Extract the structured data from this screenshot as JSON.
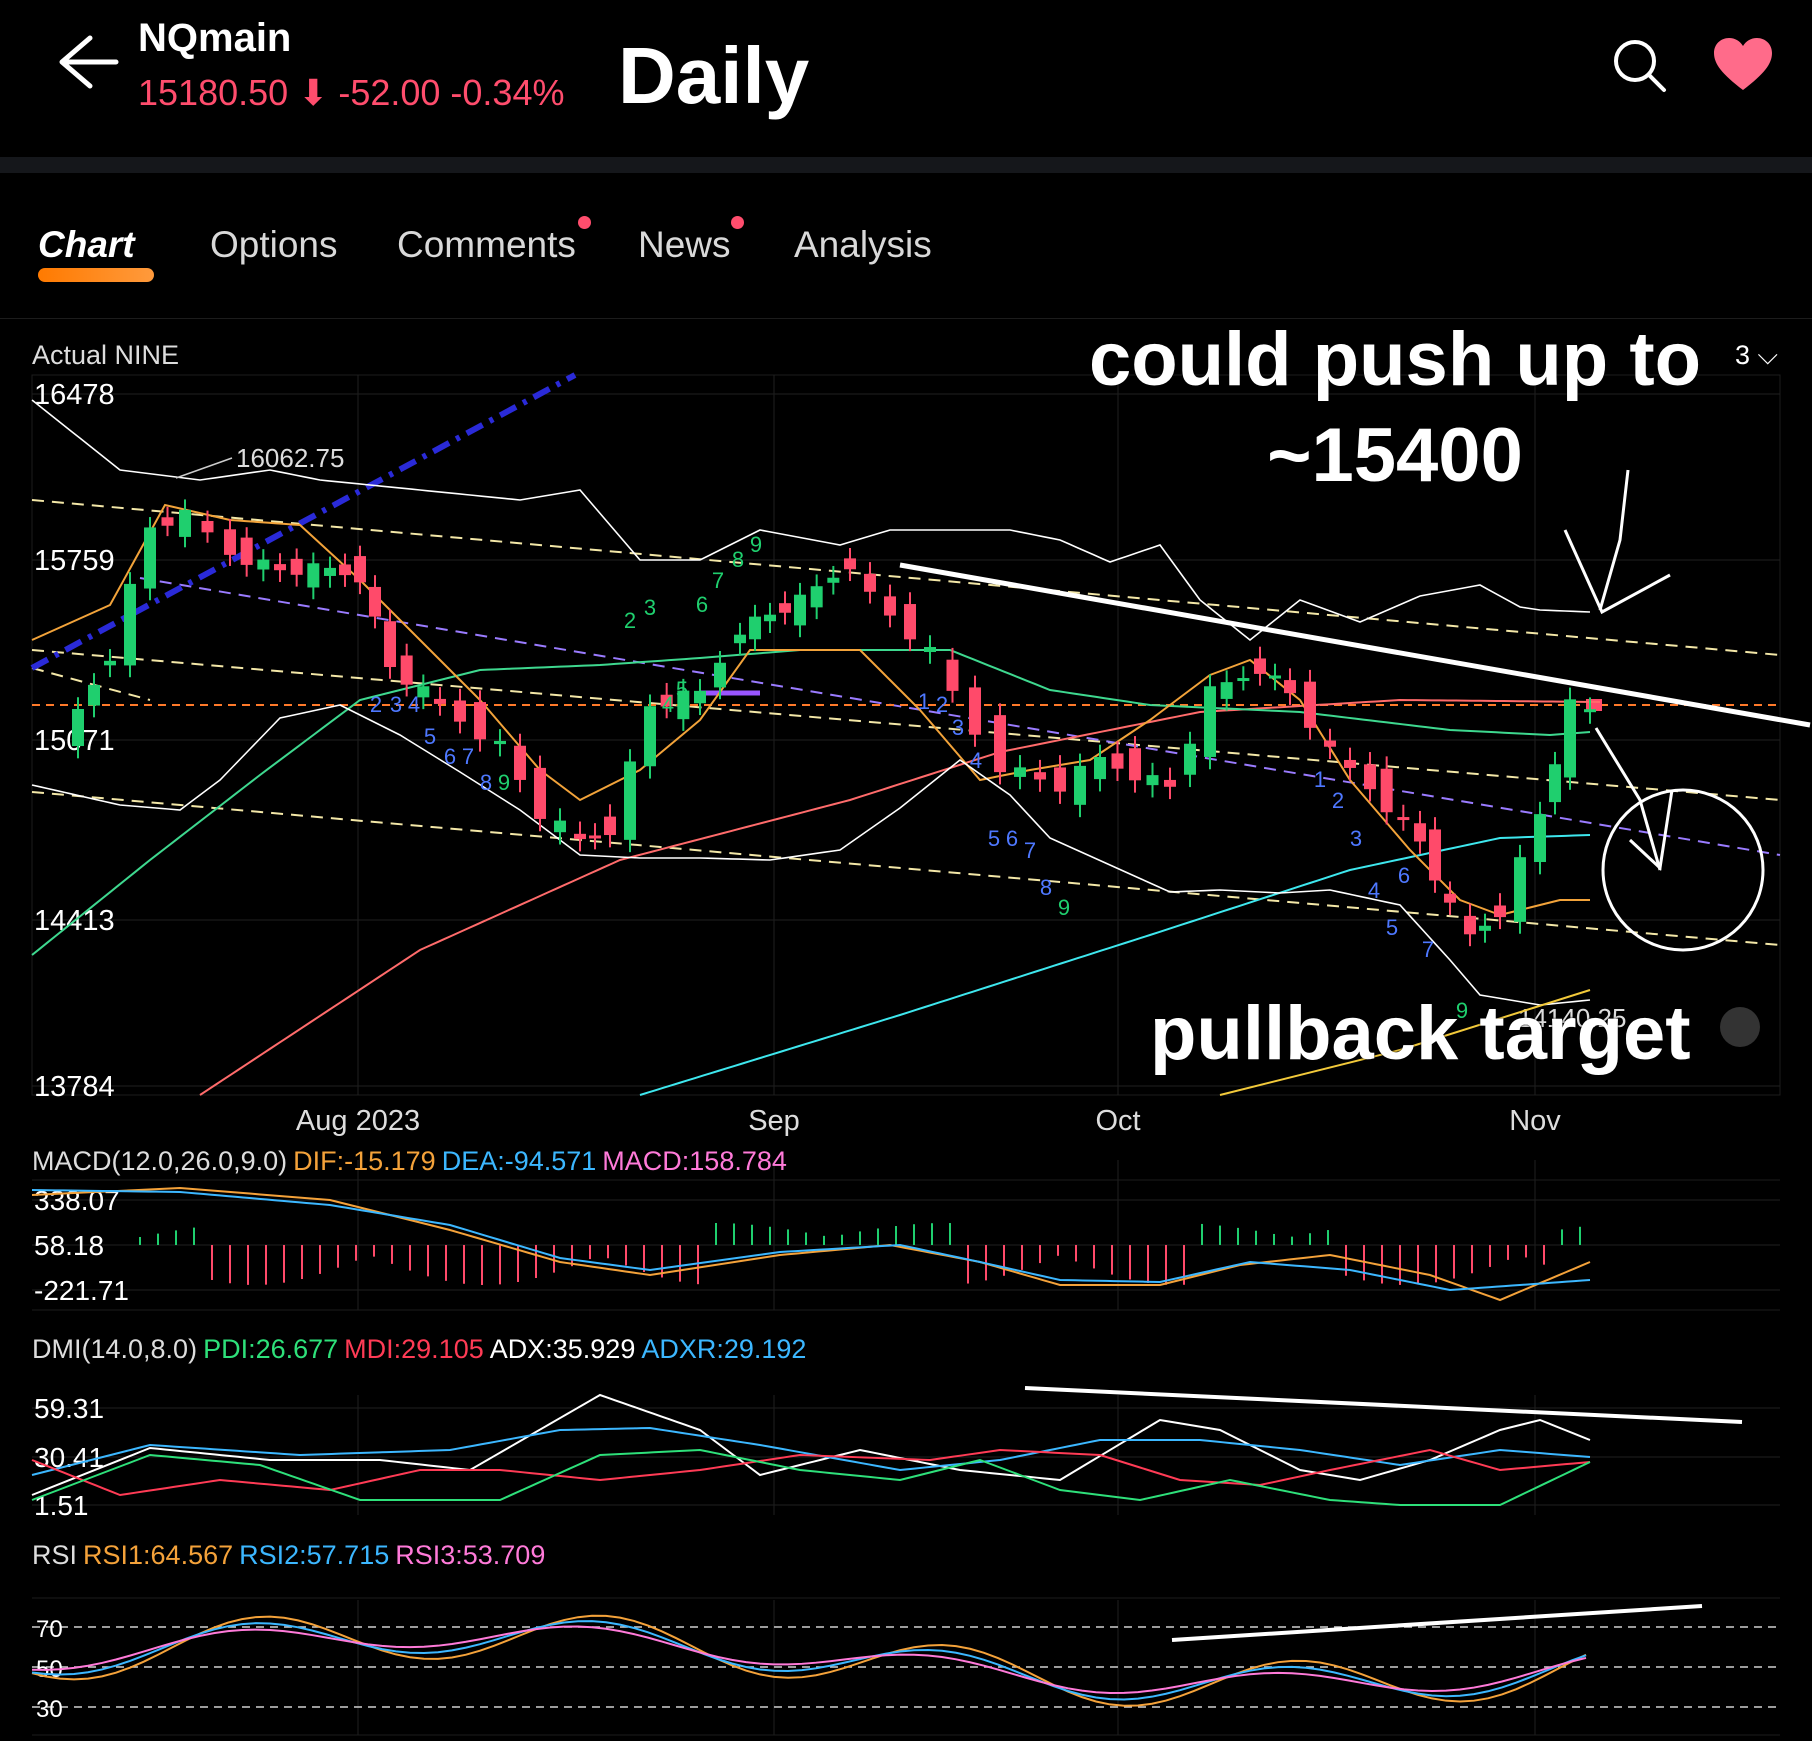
{
  "header": {
    "symbol": "NQmain",
    "price": "15180.50",
    "change": "-52.00",
    "change_pct": "-0.34%",
    "timeframe": "Daily",
    "price_color": "#ff4d6d"
  },
  "tabs": [
    {
      "label": "Chart",
      "active": true
    },
    {
      "label": "Options"
    },
    {
      "label": "Comments",
      "dot": true
    },
    {
      "label": "News",
      "dot": true
    },
    {
      "label": "Analysis"
    }
  ],
  "main_chart": {
    "indicator_label": "Actual NINE",
    "period_selector": "3",
    "y_ticks": [
      "16478",
      "15759",
      "15071",
      "14413",
      "13784"
    ],
    "x_ticks": [
      "Aug 2023",
      "Sep",
      "Oct",
      "Nov"
    ],
    "high_label": "16062.75",
    "low_label": "14140.25",
    "up_color": "#1fcf6e",
    "down_color": "#ff4a6a"
  },
  "annotations": {
    "top": [
      "could push up to",
      "~15400"
    ],
    "bottom": "pullback target"
  },
  "macd": {
    "name": "MACD(12.0,26.0,9.0)",
    "dif": "DIF:-15.179",
    "dea": "DEA:-94.571",
    "macd": "MACD:158.784",
    "y_ticks": [
      "338.07",
      "58.18",
      "-221.71"
    ]
  },
  "dmi": {
    "name": "DMI(14.0,8.0)",
    "pdi": "PDI:26.677",
    "mdi": "MDI:29.105",
    "adx": "ADX:35.929",
    "adxr": "ADXR:29.192",
    "y_ticks": [
      "59.31",
      "30.41",
      "1.51"
    ]
  },
  "rsi": {
    "name": "RSI",
    "rsi1": "RSI1:64.567",
    "rsi2": "RSI2:57.715",
    "rsi3": "RSI3:53.709",
    "y_ticks": [
      "70",
      "50",
      "30"
    ]
  }
}
